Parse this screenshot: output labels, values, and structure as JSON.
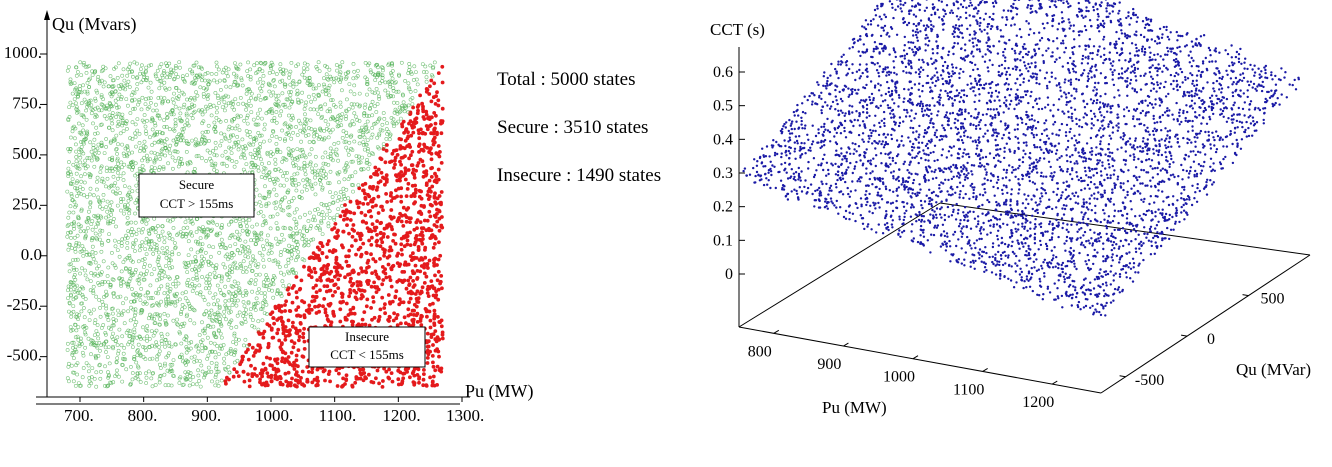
{
  "chart_data": [
    {
      "type": "scatter",
      "xlabel": "Pu (MW)",
      "ylabel": "Qu (Mvars)",
      "xlim": [
        650,
        1300
      ],
      "ylim": [
        -700,
        1000
      ],
      "xticks": [
        "700.",
        "800.",
        "900.",
        "1000.",
        "1100.",
        "1200.",
        "1300."
      ],
      "xtick_values": [
        700,
        800,
        900,
        1000,
        1100,
        1200,
        1300
      ],
      "yticks": [
        "1000.",
        "750.",
        "500.",
        "250.",
        "0.0",
        "-250.",
        "-500."
      ],
      "ytick_values": [
        1000,
        750,
        500,
        250,
        0,
        -250,
        -500
      ],
      "data_range": {
        "x": [
          680,
          1270
        ],
        "y": [
          -650,
          960
        ]
      },
      "boundary": {
        "x_at_qmin": 920,
        "x_at_qmax": 1270
      },
      "series": [
        {
          "name": "Secure",
          "color": "#4caf50",
          "count": 3510,
          "marker": "hollow-circle"
        },
        {
          "name": "Insecure",
          "color": "#e41a1c",
          "count": 1490,
          "marker": "filled-dot"
        }
      ],
      "annotations": [
        {
          "lines": [
            "Secure",
            "CCT > 155ms"
          ]
        },
        {
          "lines": [
            "Insecure",
            "CCT < 155ms"
          ]
        }
      ],
      "grid": false
    },
    {
      "type": "scatter",
      "projection": "3d",
      "xlabel": "Pu (MW)",
      "ylabel": "Qu (MVar)",
      "zlabel": "CCT (s)",
      "xticks": [
        "800",
        "900",
        "1000",
        "1100",
        "1200"
      ],
      "yticks": [
        "-500",
        "0",
        "500"
      ],
      "zticks": [
        "0.6",
        "0.5",
        "0.4",
        "0.3",
        "0.2",
        "0.1",
        "0"
      ],
      "xlim": [
        750,
        1270
      ],
      "ylim": [
        -700,
        1000
      ],
      "zlim": [
        0,
        0.65
      ],
      "surface": {
        "cct_at_corners": {
          "pu_min_qu_min": 0.29,
          "pu_min_qu_max": 0.66,
          "pu_max_qu_min": 0.07,
          "pu_max_qu_max": 0.41
        }
      },
      "series": [
        {
          "name": "",
          "color": "#1a1aa6",
          "count": 5000,
          "marker": "dot"
        }
      ],
      "grid": false
    }
  ],
  "stats": {
    "total": "Total : 5000 states",
    "secure": "Secure : 3510 states",
    "insecure": "Insecure : 1490 states"
  }
}
